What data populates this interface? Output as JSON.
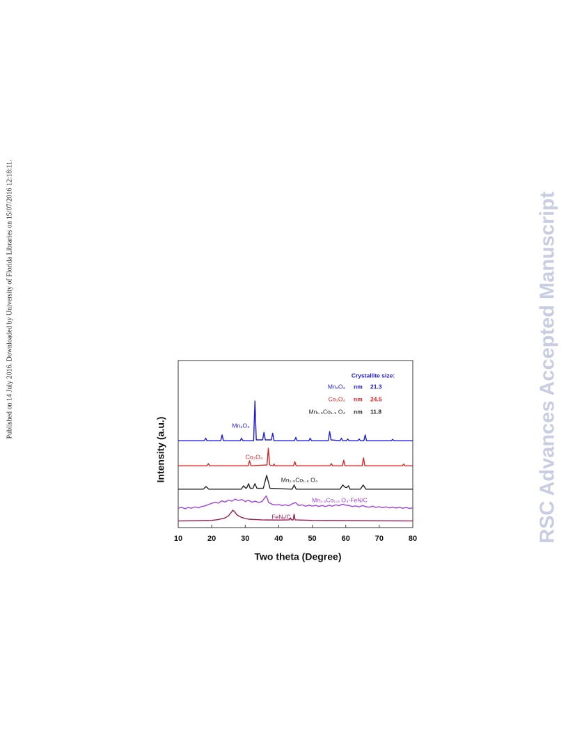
{
  "sidebar": "Published on 14 July 2016. Downloaded by University of Florida Libraries on 15/07/2016 12:18:11.",
  "watermark": "RSC Advances Accepted Manuscript",
  "chart_data": {
    "type": "line",
    "x_label": "Two theta (Degree)",
    "y_label": "Intensity (a.u.)",
    "xlim": [
      10,
      80
    ],
    "xticks": [
      10,
      20,
      30,
      40,
      50,
      60,
      70,
      80
    ],
    "ylim": [
      0,
      100
    ],
    "series": [
      {
        "name": "Mn₂O₃",
        "color": "#1a1ae0",
        "x": [
          10,
          17.8,
          18.2,
          18.6,
          22.7,
          23.1,
          23.5,
          28.5,
          28.9,
          29.3,
          32.5,
          32.9,
          33.3,
          35.2,
          35.6,
          36,
          37.8,
          38.2,
          38.6,
          44.7,
          45.1,
          45.5,
          49,
          49.4,
          49.8,
          54.8,
          55.2,
          55.6,
          58.3,
          58.7,
          59.1,
          60.2,
          60.6,
          61,
          63.6,
          64,
          64.4,
          65.4,
          65.8,
          66.2,
          73.6,
          74,
          74.4,
          80
        ],
        "values": [
          52,
          52,
          53.5,
          52,
          52,
          55.5,
          52,
          52,
          53.5,
          52,
          52,
          75.8,
          52.5,
          52.5,
          57,
          52.5,
          52.5,
          56.5,
          52,
          52,
          54,
          52,
          52,
          53.5,
          52,
          52,
          57.5,
          52.5,
          52,
          53.5,
          52,
          52,
          53,
          52,
          52,
          53,
          52,
          52,
          55.5,
          52,
          52,
          52.8,
          52,
          52
        ]
      },
      {
        "name": "Co₃O₄",
        "color": "#e02020",
        "x": [
          10,
          18.6,
          19,
          19.4,
          30.9,
          31.3,
          31.7,
          36.5,
          36.9,
          37.3,
          38.3,
          38.6,
          38.9,
          44.4,
          44.8,
          45.2,
          55.3,
          55.7,
          56.1,
          59,
          59.4,
          59.8,
          64.9,
          65.3,
          65.7,
          76.9,
          77.3,
          77.7,
          80
        ],
        "values": [
          37,
          37,
          38.3,
          37,
          37,
          40,
          37,
          37.5,
          47.5,
          37.5,
          37,
          38,
          37,
          37,
          39.5,
          37,
          37,
          38.3,
          37,
          37,
          40.3,
          37,
          37,
          41.7,
          37,
          37,
          38,
          37,
          37
        ]
      },
      {
        "name": "Mn₁.₅Co₁.₅ O₄",
        "color": "#222222",
        "x": [
          10,
          17.5,
          18.3,
          19.1,
          28.8,
          29.5,
          30.2,
          30.5,
          31,
          31.5,
          32.3,
          32.9,
          33.5,
          35.4,
          36.4,
          37.4,
          44,
          44.6,
          45.2,
          58.3,
          59.1,
          59.9,
          60.3,
          60.8,
          61.3,
          64.4,
          65.2,
          66,
          80
        ],
        "values": [
          23,
          23,
          24.6,
          23,
          23,
          25,
          23.5,
          24,
          26.3,
          23.5,
          23.5,
          26.3,
          23.5,
          23.5,
          31.3,
          23.5,
          23,
          25.5,
          23,
          23,
          25.5,
          24,
          24,
          25,
          23,
          23,
          25.5,
          23,
          23
        ]
      },
      {
        "name": "Mn₁.₅Co₁.₅ O₄-FeN/C",
        "color": "#a040e0",
        "x": [
          10,
          11,
          12,
          13,
          14,
          15,
          16,
          17,
          18,
          19,
          20,
          21,
          22,
          23,
          24,
          25,
          26,
          27,
          28,
          29,
          30,
          31,
          32,
          33,
          34,
          35,
          36.3,
          37,
          38,
          39,
          40,
          41,
          42,
          43,
          44,
          45,
          46,
          47,
          48,
          49,
          50,
          51,
          52,
          53,
          54,
          55,
          56,
          57,
          58,
          59,
          60,
          61,
          62,
          63,
          64,
          65,
          66,
          67,
          68,
          69,
          70,
          71,
          72,
          73,
          74,
          75,
          76,
          77,
          78,
          79,
          80
        ],
        "values": [
          11.5,
          12.2,
          11.3,
          12,
          11.6,
          12.4,
          11.8,
          12.6,
          13,
          13.8,
          14.5,
          15.2,
          14.6,
          16,
          15.3,
          16.4,
          15.8,
          17,
          16.2,
          16.8,
          15.6,
          16.4,
          15.2,
          15.8,
          15,
          15.6,
          19,
          15,
          14,
          13.5,
          13.8,
          13.2,
          13.6,
          13.1,
          14.2,
          15,
          13.2,
          13.6,
          12.8,
          13.4,
          12.9,
          13.3,
          12.7,
          13.2,
          12.6,
          13.4,
          12.8,
          13.6,
          13.1,
          14,
          13.4,
          13.2,
          12.6,
          13,
          12.4,
          13.2,
          12.5,
          12.2,
          12.8,
          12.1,
          12.5,
          11.9,
          12.4,
          11.8,
          12.2,
          11.7,
          12.1,
          11.6,
          12,
          11.5,
          11.8
        ]
      },
      {
        "name": "FeNₓ/C",
        "color": "#9b1b50",
        "x": [
          10,
          20,
          22,
          24,
          25,
          25.8,
          26.3,
          26.8,
          27.6,
          29,
          31,
          35,
          40,
          43.2,
          43.5,
          43.8,
          44.3,
          44.6,
          44.9,
          50,
          60,
          70,
          80
        ],
        "values": [
          4,
          4.3,
          4.8,
          5.8,
          7,
          9,
          10.4,
          9.5,
          7.5,
          6,
          5,
          4.6,
          4.5,
          4.6,
          5.8,
          4.6,
          4.6,
          8,
          4.6,
          4.3,
          4.2,
          4.1,
          4
        ]
      }
    ],
    "crystallite": {
      "title": "Crystallite size:",
      "rows": [
        {
          "name": "Mn₂O₃",
          "unit": "nm",
          "value": 21.3,
          "color": "#1a1ae0"
        },
        {
          "name": "Co₃O₄",
          "unit": "nm",
          "value": 24.5,
          "color": "#e02020"
        },
        {
          "name": "Mn₁.₅Co₁.₅ O₄",
          "unit": "nm",
          "value": 11.8,
          "color": "#222222"
        }
      ]
    }
  }
}
